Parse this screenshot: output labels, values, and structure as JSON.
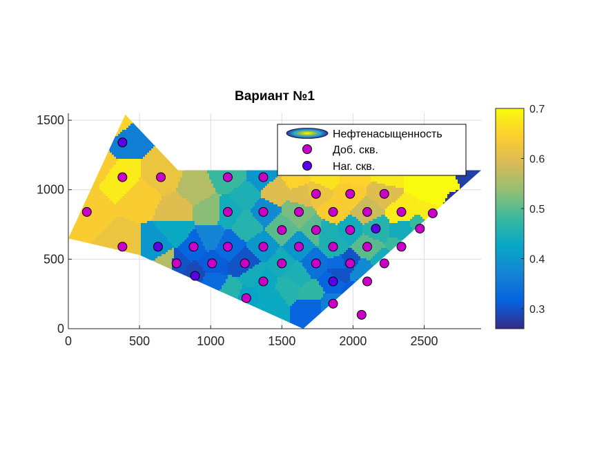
{
  "chart_data": {
    "type": "scatter",
    "title": "Вариант №1",
    "xlabel": "",
    "ylabel": "",
    "xlim": [
      0,
      2900
    ],
    "ylim": [
      0,
      1550
    ],
    "xticks": [
      0,
      500,
      1000,
      1500,
      2000,
      2500
    ],
    "yticks": [
      0,
      500,
      1000,
      1500
    ],
    "grid": true,
    "legend_position": "top-right",
    "domain_polygon": [
      [
        400,
        1540
      ],
      [
        770,
        1140
      ],
      [
        2900,
        1140
      ],
      [
        1650,
        0
      ],
      [
        500,
        530
      ],
      [
        0,
        650
      ]
    ],
    "colorbar": {
      "min": 0.26,
      "max": 0.7,
      "ticks": [
        0.3,
        0.4,
        0.5,
        0.6,
        0.7
      ],
      "tick_labels": [
        "0.3",
        "0.4",
        "0.5",
        "0.6",
        "0.7"
      ],
      "colormap": "parula"
    },
    "legend": [
      {
        "label": "Нефтенасыщенность",
        "marker": "contour"
      },
      {
        "label": "Доб. скв.",
        "marker": "circle",
        "color": "#c800c8"
      },
      {
        "label": "Наг. скв.",
        "marker": "circle",
        "color": "#5a00e6"
      }
    ],
    "series": [
      {
        "name": "Доб. скв.",
        "color": "#c800c8",
        "x": [
          130,
          380,
          650,
          380,
          630,
          880,
          760,
          1010,
          1120,
          1120,
          1120,
          1240,
          1250,
          1370,
          1370,
          1370,
          1370,
          1500,
          1500,
          1620,
          1620,
          1740,
          1740,
          1740,
          1860,
          1860,
          1860,
          1980,
          1980,
          1980,
          2100,
          2100,
          2100,
          2220,
          2220,
          2340,
          2340,
          2470,
          2560,
          2060
        ],
        "y": [
          840,
          1090,
          1090,
          590,
          590,
          590,
          470,
          470,
          1090,
          840,
          590,
          470,
          220,
          1090,
          840,
          590,
          340,
          710,
          470,
          840,
          590,
          970,
          710,
          470,
          840,
          590,
          180,
          970,
          710,
          470,
          840,
          590,
          340,
          970,
          470,
          840,
          590,
          720,
          830,
          100
        ]
      },
      {
        "name": "Наг. скв.",
        "color": "#5a00e6",
        "x": [
          380,
          630,
          890,
          1860,
          2160
        ],
        "y": [
          1340,
          590,
          380,
          340,
          720
        ]
      }
    ],
    "field": {
      "name": "Нефтенасыщенность",
      "x": [
        130,
        380,
        650,
        380,
        630,
        880,
        760,
        1010,
        1120,
        1120,
        1120,
        1240,
        1250,
        1370,
        1370,
        1370,
        1370,
        1500,
        1500,
        1620,
        1620,
        1740,
        1740,
        1740,
        1860,
        1860,
        1860,
        1980,
        1980,
        1980,
        2100,
        2100,
        2100,
        2220,
        2220,
        2340,
        2340,
        2470,
        2560,
        2060,
        380,
        630,
        890,
        1860,
        2160,
        220,
        300,
        520,
        760,
        900,
        760,
        1000,
        1250,
        1450,
        1600,
        1800,
        2000,
        2250,
        2450,
        2650,
        2800,
        2700,
        1900,
        1700,
        1550,
        1420,
        1300,
        1600,
        1700,
        1900,
        2000,
        2050,
        1800,
        1150,
        1000,
        700,
        2350,
        2300,
        2600,
        1260,
        1650,
        1000
      ],
      "y": [
        840,
        1090,
        1090,
        590,
        590,
        590,
        470,
        470,
        1090,
        840,
        590,
        470,
        220,
        1090,
        840,
        590,
        340,
        710,
        470,
        840,
        590,
        970,
        710,
        470,
        840,
        590,
        180,
        970,
        710,
        470,
        840,
        590,
        340,
        970,
        470,
        840,
        590,
        720,
        830,
        100,
        1340,
        590,
        380,
        340,
        720,
        1200,
        1440,
        960,
        850,
        1000,
        700,
        650,
        950,
        1000,
        1100,
        1100,
        1100,
        1100,
        1100,
        1050,
        1110,
        900,
        400,
        250,
        300,
        200,
        380,
        380,
        180,
        450,
        250,
        420,
        700,
        250,
        330,
        480,
        700,
        400,
        950,
        750,
        950,
        850
      ],
      "values": [
        0.64,
        0.68,
        0.62,
        0.62,
        0.4,
        0.32,
        0.3,
        0.31,
        0.48,
        0.44,
        0.33,
        0.3,
        0.42,
        0.4,
        0.38,
        0.4,
        0.43,
        0.5,
        0.44,
        0.52,
        0.4,
        0.62,
        0.5,
        0.34,
        0.64,
        0.45,
        0.36,
        0.64,
        0.44,
        0.3,
        0.58,
        0.5,
        0.34,
        0.6,
        0.44,
        0.68,
        0.48,
        0.48,
        0.68,
        0.4,
        0.36,
        0.35,
        0.29,
        0.32,
        0.46,
        0.64,
        0.65,
        0.64,
        0.6,
        0.56,
        0.43,
        0.37,
        0.45,
        0.6,
        0.65,
        0.67,
        0.65,
        0.68,
        0.7,
        0.7,
        0.28,
        0.27,
        0.3,
        0.47,
        0.46,
        0.43,
        0.44,
        0.45,
        0.32,
        0.33,
        0.31,
        0.38,
        0.45,
        0.46,
        0.33,
        0.56,
        0.44,
        0.38,
        0.7,
        0.46,
        0.6,
        0.53
      ]
    }
  }
}
